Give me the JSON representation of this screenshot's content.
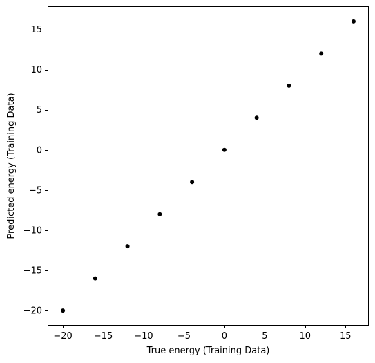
{
  "chart_data": {
    "type": "scatter",
    "xlabel": "True energy (Training Data)",
    "ylabel": "Predicted energy (Training Data)",
    "xlim": [
      -21.8,
      17.8
    ],
    "ylim": [
      -21.8,
      17.8
    ],
    "xticks": [
      -20,
      -15,
      -10,
      -5,
      0,
      5,
      10,
      15
    ],
    "yticks": [
      -20,
      -15,
      -10,
      -5,
      0,
      5,
      10,
      15
    ],
    "xtick_labels": [
      "−20",
      "−15",
      "−10",
      "−5",
      "0",
      "5",
      "10",
      "15"
    ],
    "ytick_labels": [
      "−20",
      "−15",
      "−10",
      "−5",
      "0",
      "5",
      "10",
      "15"
    ],
    "grid": false,
    "marker_color": "#000000",
    "series": [
      {
        "points": [
          {
            "x": -20,
            "y": -20
          },
          {
            "x": -16,
            "y": -16
          },
          {
            "x": -12,
            "y": -12
          },
          {
            "x": -8,
            "y": -8
          },
          {
            "x": -4,
            "y": -4
          },
          {
            "x": 0,
            "y": 0
          },
          {
            "x": 4,
            "y": 4
          },
          {
            "x": 8,
            "y": 8
          },
          {
            "x": 12,
            "y": 12
          },
          {
            "x": 16,
            "y": 16
          }
        ]
      }
    ]
  }
}
